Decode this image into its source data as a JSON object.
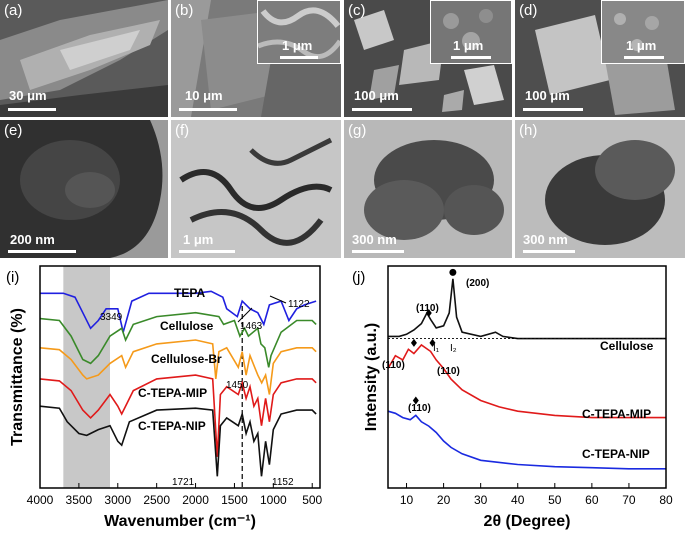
{
  "panels": {
    "a": {
      "label": "(a)",
      "scale": "30 μm"
    },
    "b": {
      "label": "(b)",
      "scale": "10 μm",
      "inset_scale": "1 μm"
    },
    "c": {
      "label": "(c)",
      "scale": "100 μm",
      "inset_scale": "1 μm"
    },
    "d": {
      "label": "(d)",
      "scale": "100 μm",
      "inset_scale": "1 μm"
    },
    "e": {
      "label": "(e)",
      "scale": "200 nm"
    },
    "f": {
      "label": "(f)",
      "scale": "1 μm"
    },
    "g": {
      "label": "(g)",
      "scale": "300 nm"
    },
    "h": {
      "label": "(h)",
      "scale": "300 nm"
    }
  },
  "chart_data": [
    {
      "type": "line",
      "panel_label": "(i)",
      "xlabel": "Wavenumber (cm⁻¹)",
      "ylabel": "Transmittance (%)",
      "xlim": [
        4000,
        400
      ],
      "x_ticks": [
        "4000",
        "3500",
        "3000",
        "2500",
        "2000",
        "1500",
        "1000",
        "500"
      ],
      "shaded_band": [
        3700,
        3100
      ],
      "dashed_line_x": 1400,
      "series": [
        {
          "name": "TEPA",
          "color": "#2020e0",
          "points": [
            [
              4000,
              88
            ],
            [
              3700,
              88
            ],
            [
              3550,
              86
            ],
            [
              3450,
              78
            ],
            [
              3349,
              70
            ],
            [
              3250,
              74
            ],
            [
              3150,
              80
            ],
            [
              3000,
              80
            ],
            [
              2930,
              68
            ],
            [
              2820,
              84
            ],
            [
              2600,
              88
            ],
            [
              2200,
              88
            ],
            [
              2000,
              88
            ],
            [
              1800,
              89
            ],
            [
              1650,
              86
            ],
            [
              1600,
              80
            ],
            [
              1463,
              76
            ],
            [
              1400,
              84
            ],
            [
              1350,
              82
            ],
            [
              1300,
              80
            ],
            [
              1200,
              78
            ],
            [
              1122,
              72
            ],
            [
              1050,
              82
            ],
            [
              900,
              84
            ],
            [
              800,
              74
            ],
            [
              700,
              80
            ],
            [
              600,
              82
            ],
            [
              450,
              84
            ]
          ]
        },
        {
          "name": "Cellulose",
          "color": "#3a8a2a",
          "points": [
            [
              4000,
              75
            ],
            [
              3750,
              74
            ],
            [
              3600,
              66
            ],
            [
              3450,
              54
            ],
            [
              3349,
              52
            ],
            [
              3250,
              56
            ],
            [
              3100,
              66
            ],
            [
              2950,
              70
            ],
            [
              2900,
              64
            ],
            [
              2800,
              72
            ],
            [
              2500,
              76
            ],
            [
              2000,
              78
            ],
            [
              1700,
              76
            ],
            [
              1640,
              72
            ],
            [
              1500,
              74
            ],
            [
              1430,
              66
            ],
            [
              1370,
              70
            ],
            [
              1320,
              66
            ],
            [
              1200,
              70
            ],
            [
              1160,
              62
            ],
            [
              1110,
              60
            ],
            [
              1060,
              50
            ],
            [
              1030,
              56
            ],
            [
              900,
              68
            ],
            [
              700,
              74
            ],
            [
              500,
              74
            ],
            [
              450,
              72
            ]
          ]
        },
        {
          "name": "Cellulose-Br",
          "color": "#f59a1a",
          "points": [
            [
              4000,
              60
            ],
            [
              3750,
              59
            ],
            [
              3600,
              54
            ],
            [
              3450,
              46
            ],
            [
              3400,
              44
            ],
            [
              3250,
              46
            ],
            [
              3100,
              52
            ],
            [
              2950,
              56
            ],
            [
              2900,
              50
            ],
            [
              2800,
              58
            ],
            [
              2500,
              62
            ],
            [
              2000,
              64
            ],
            [
              1780,
              62
            ],
            [
              1740,
              44
            ],
            [
              1700,
              58
            ],
            [
              1600,
              60
            ],
            [
              1450,
              50
            ],
            [
              1400,
              58
            ],
            [
              1350,
              46
            ],
            [
              1300,
              56
            ],
            [
              1200,
              46
            ],
            [
              1150,
              42
            ],
            [
              1100,
              46
            ],
            [
              1050,
              36
            ],
            [
              1000,
              52
            ],
            [
              900,
              58
            ],
            [
              700,
              60
            ],
            [
              500,
              60
            ],
            [
              450,
              58
            ]
          ]
        },
        {
          "name": "C-TEPA-MIP",
          "color": "#e01a1a",
          "points": [
            [
              4000,
              44
            ],
            [
              3750,
              43
            ],
            [
              3600,
              38
            ],
            [
              3450,
              28
            ],
            [
              3350,
              24
            ],
            [
              3250,
              28
            ],
            [
              3100,
              36
            ],
            [
              3000,
              30
            ],
            [
              2950,
              26
            ],
            [
              2800,
              38
            ],
            [
              2500,
              44
            ],
            [
              2000,
              46
            ],
            [
              1780,
              44
            ],
            [
              1721,
              4
            ],
            [
              1680,
              36
            ],
            [
              1600,
              40
            ],
            [
              1450,
              36
            ],
            [
              1400,
              42
            ],
            [
              1350,
              34
            ],
            [
              1300,
              40
            ],
            [
              1250,
              30
            ],
            [
              1200,
              34
            ],
            [
              1152,
              20
            ],
            [
              1100,
              34
            ],
            [
              1050,
              22
            ],
            [
              1000,
              36
            ],
            [
              900,
              42
            ],
            [
              700,
              44
            ],
            [
              500,
              44
            ],
            [
              450,
              42
            ]
          ]
        },
        {
          "name": "C-TEPA-NIP",
          "color": "#111111",
          "points": [
            [
              4000,
              30
            ],
            [
              3750,
              29
            ],
            [
              3650,
              22
            ],
            [
              3500,
              16
            ],
            [
              3400,
              15
            ],
            [
              3250,
              18
            ],
            [
              3100,
              20
            ],
            [
              3000,
              12
            ],
            [
              2950,
              10
            ],
            [
              2850,
              22
            ],
            [
              2500,
              28
            ],
            [
              2000,
              29
            ],
            [
              1780,
              28
            ],
            [
              1721,
              -6
            ],
            [
              1680,
              20
            ],
            [
              1600,
              24
            ],
            [
              1450,
              20
            ],
            [
              1400,
              26
            ],
            [
              1350,
              16
            ],
            [
              1300,
              22
            ],
            [
              1250,
              12
            ],
            [
              1200,
              16
            ],
            [
              1152,
              -6
            ],
            [
              1100,
              12
            ],
            [
              1050,
              0
            ],
            [
              1000,
              18
            ],
            [
              900,
              26
            ],
            [
              700,
              28
            ],
            [
              500,
              28
            ],
            [
              450,
              26
            ]
          ]
        }
      ],
      "annotations": [
        "3349",
        "1463",
        "1450",
        "1721",
        "1152",
        "1122"
      ]
    },
    {
      "type": "line",
      "panel_label": "(j)",
      "xlabel": "2θ (Degree)",
      "ylabel": "Intensity (a.u.)",
      "xlim": [
        5,
        80
      ],
      "x_ticks": [
        "10",
        "20",
        "30",
        "40",
        "50",
        "60",
        "70",
        "80"
      ],
      "series": [
        {
          "name": "Cellulose",
          "color": "#111111",
          "points": [
            [
              5,
              71
            ],
            [
              8,
              71
            ],
            [
              10,
              72
            ],
            [
              12,
              74
            ],
            [
              14,
              77
            ],
            [
              15.5,
              82
            ],
            [
              16.5,
              79
            ],
            [
              18,
              75
            ],
            [
              20,
              76
            ],
            [
              21.5,
              82
            ],
            [
              22.5,
              98
            ],
            [
              23.5,
              80
            ],
            [
              25,
              73
            ],
            [
              30,
              71
            ],
            [
              34,
              73
            ],
            [
              36,
              71
            ],
            [
              40,
              70
            ],
            [
              50,
              70
            ],
            [
              60,
              70
            ],
            [
              70,
              70
            ],
            [
              80,
              70
            ]
          ]
        },
        {
          "name": "C-TEPA-MIP",
          "color": "#e01a1a",
          "points": [
            [
              5,
              56
            ],
            [
              7,
              62
            ],
            [
              9,
              60
            ],
            [
              10.5,
              65
            ],
            [
              12,
              63
            ],
            [
              14,
              67
            ],
            [
              16.5,
              64
            ],
            [
              18,
              60
            ],
            [
              20,
              56
            ],
            [
              22,
              51
            ],
            [
              25,
              46
            ],
            [
              30,
              41
            ],
            [
              35,
              38
            ],
            [
              40,
              36
            ],
            [
              50,
              34
            ],
            [
              60,
              33
            ],
            [
              70,
              33
            ],
            [
              80,
              33
            ]
          ]
        },
        {
          "name": "C-TEPA-NIP",
          "color": "#1a2ae0",
          "points": [
            [
              5,
              36
            ],
            [
              7,
              35
            ],
            [
              9,
              33
            ],
            [
              11,
              32
            ],
            [
              12.5,
              34
            ],
            [
              14,
              31
            ],
            [
              16,
              29
            ],
            [
              18,
              26
            ],
            [
              20,
              22
            ],
            [
              22,
              19
            ],
            [
              25,
              16
            ],
            [
              30,
              13
            ],
            [
              35,
              12
            ],
            [
              40,
              11
            ],
            [
              50,
              10
            ],
            [
              60,
              9.5
            ],
            [
              70,
              9
            ],
            [
              80,
              9
            ]
          ]
        }
      ],
      "annotations": [
        "(200)",
        "(110)",
        "(110)",
        "(110)",
        "(110)",
        "I₁",
        "I₂"
      ]
    }
  ]
}
